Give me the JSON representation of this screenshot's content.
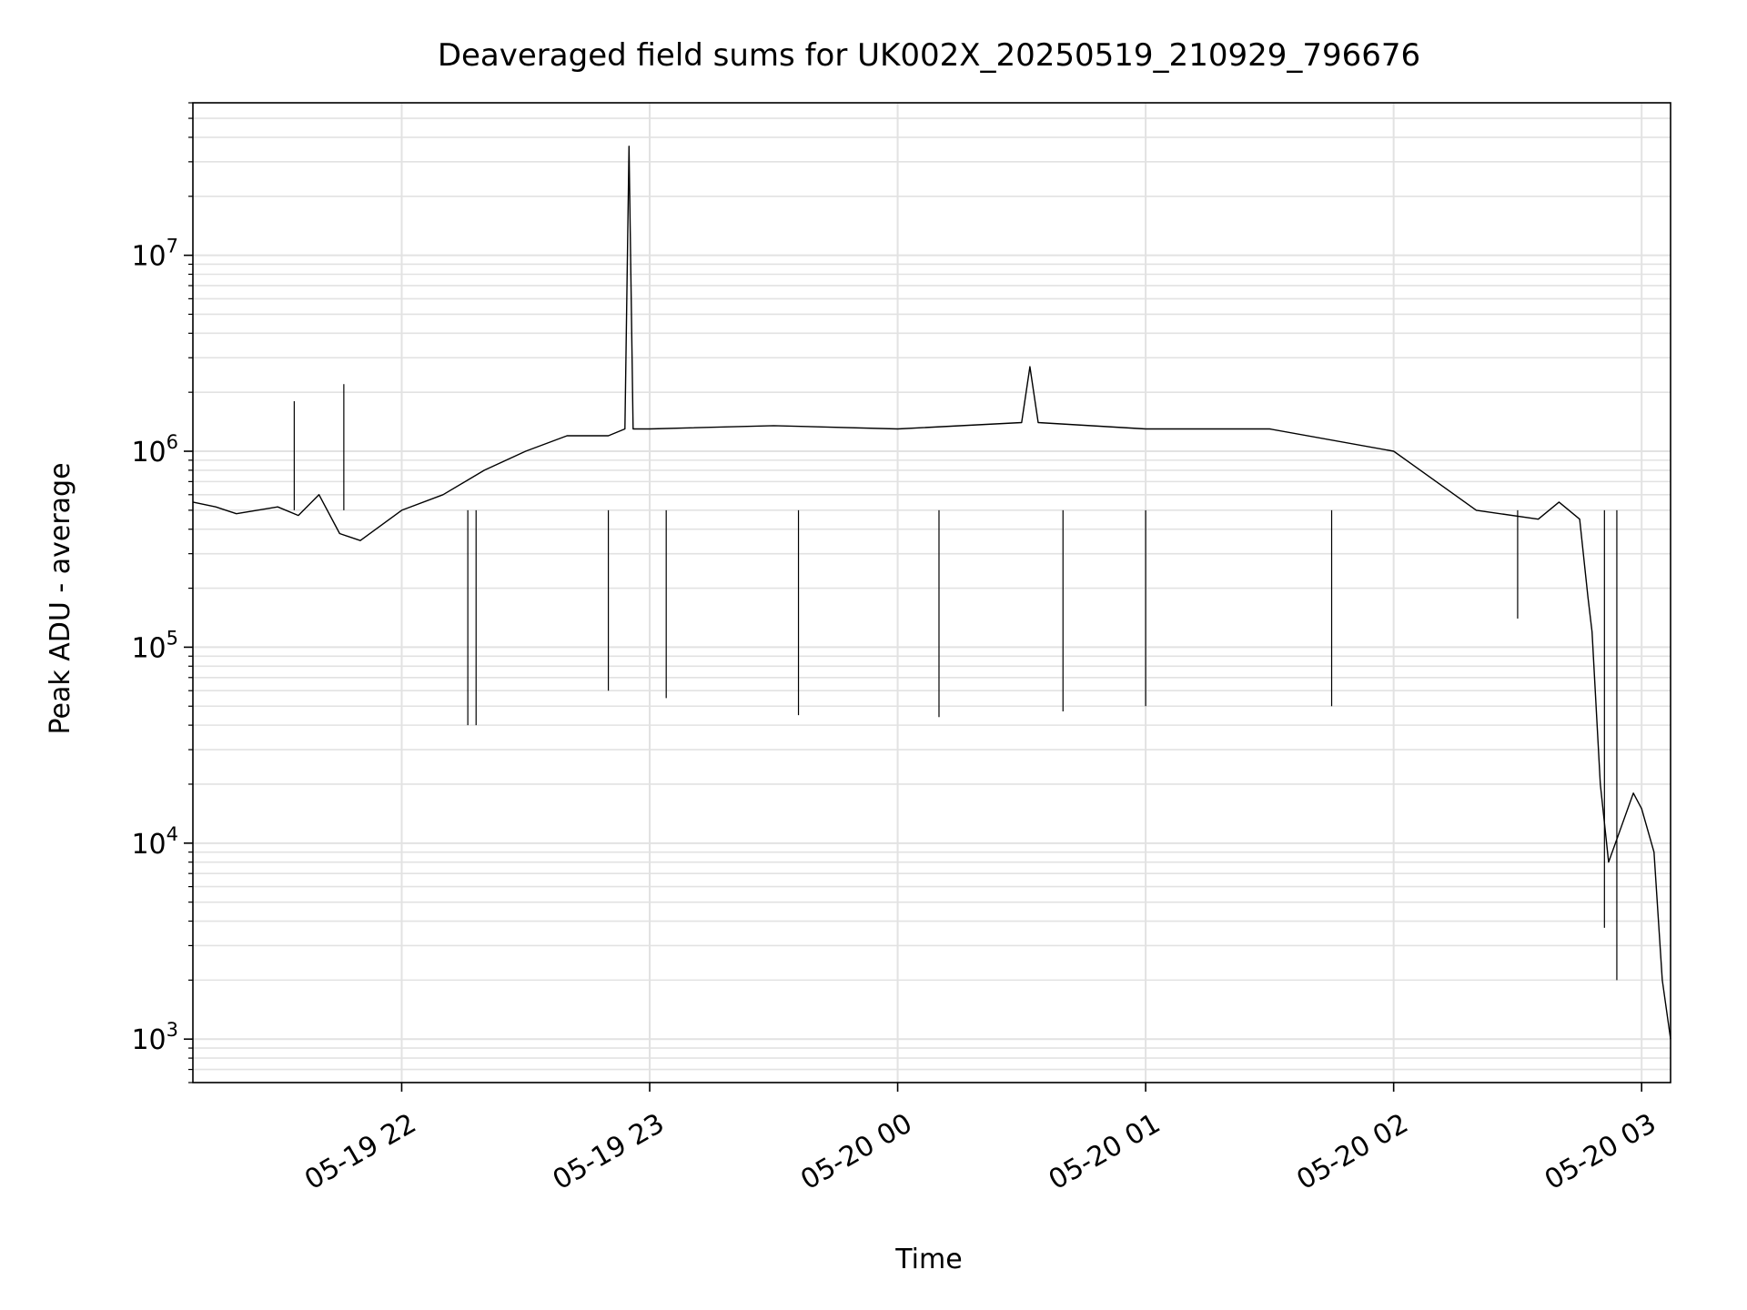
{
  "chart_data": {
    "type": "line",
    "title": "Deaveraged field sums for UK002X_20250519_210929_796676",
    "xlabel": "Time",
    "ylabel": "Peak ADU - average",
    "yscale": "log",
    "ylim": [
      600,
      60000000
    ],
    "xlim": [
      "2025-05-19 21:09:29",
      "2025-05-20 03:07:00"
    ],
    "x_ticks": [
      {
        "t": "2025-05-19 22:00",
        "label": "05-19 22"
      },
      {
        "t": "2025-05-19 23:00",
        "label": "05-19 23"
      },
      {
        "t": "2025-05-20 00:00",
        "label": "05-20 00"
      },
      {
        "t": "2025-05-20 01:00",
        "label": "05-20 01"
      },
      {
        "t": "2025-05-20 02:00",
        "label": "05-20 02"
      },
      {
        "t": "2025-05-20 03:00",
        "label": "05-20 03"
      }
    ],
    "y_ticks": [
      {
        "value": 1000,
        "base": "10",
        "exp": "3"
      },
      {
        "value": 10000,
        "base": "10",
        "exp": "4"
      },
      {
        "value": 100000,
        "base": "10",
        "exp": "5"
      },
      {
        "value": 1000000,
        "base": "10",
        "exp": "6"
      },
      {
        "value": 10000000,
        "base": "10",
        "exp": "7"
      }
    ],
    "grid": true,
    "line_color": "#000000",
    "series": [
      {
        "x": [
          "2025-05-19 21:09:29",
          "2025-05-19 21:15",
          "2025-05-19 21:20",
          "2025-05-19 21:25",
          "2025-05-19 21:30",
          "2025-05-19 21:35",
          "2025-05-19 21:40",
          "2025-05-19 21:45",
          "2025-05-19 21:50",
          "2025-05-19 22:00",
          "2025-05-19 22:10",
          "2025-05-19 22:20",
          "2025-05-19 22:30",
          "2025-05-19 22:40",
          "2025-05-19 22:50",
          "2025-05-19 22:54",
          "2025-05-19 22:55",
          "2025-05-19 22:56",
          "2025-05-19 23:00",
          "2025-05-19 23:30",
          "2025-05-20 00:00",
          "2025-05-20 00:30",
          "2025-05-20 00:32",
          "2025-05-20 00:34",
          "2025-05-20 01:00",
          "2025-05-20 01:30",
          "2025-05-20 02:00",
          "2025-05-20 02:20",
          "2025-05-20 02:35",
          "2025-05-20 02:40",
          "2025-05-20 02:45",
          "2025-05-20 02:47",
          "2025-05-20 02:48",
          "2025-05-20 02:50",
          "2025-05-20 02:52",
          "2025-05-20 02:55",
          "2025-05-20 02:58",
          "2025-05-20 03:00",
          "2025-05-20 03:03",
          "2025-05-20 03:05",
          "2025-05-20 03:07"
        ],
        "y": [
          550000,
          520000,
          480000,
          500000,
          520000,
          470000,
          600000,
          380000,
          350000,
          500000,
          600000,
          800000,
          1000000,
          1200000,
          1200000,
          1300000,
          36000000,
          1300000,
          1300000,
          1350000,
          1300000,
          1400000,
          2700000,
          1400000,
          1300000,
          1300000,
          1000000,
          500000,
          450000,
          550000,
          450000,
          180000,
          120000,
          20000,
          8000,
          12000,
          18000,
          15000,
          9000,
          2000,
          1000
        ]
      },
      {
        "x": [
          "2025-05-19 21:34",
          "2025-05-19 21:46",
          "2025-05-19 22:16",
          "2025-05-19 22:18",
          "2025-05-19 22:50",
          "2025-05-19 23:04",
          "2025-05-19 23:36",
          "2025-05-20 00:10",
          "2025-05-20 00:40",
          "2025-05-20 01:00",
          "2025-05-20 01:45",
          "2025-05-20 02:30",
          "2025-05-20 02:51",
          "2025-05-20 02:54"
        ],
        "y": [
          1800000,
          2200000,
          40000,
          40000,
          60000,
          55000,
          45000,
          44000,
          47000,
          50000,
          50000,
          140000,
          3700,
          2000
        ]
      }
    ]
  }
}
